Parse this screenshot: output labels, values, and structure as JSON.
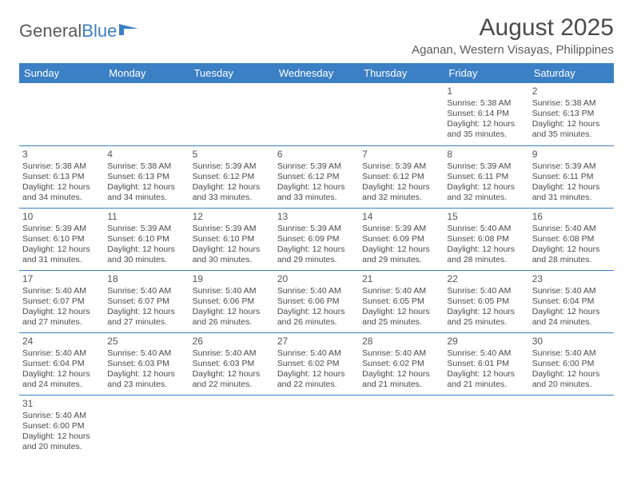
{
  "logo": {
    "text_gray": "General",
    "text_blue": "Blue"
  },
  "title": "August 2025",
  "location": "Aganan, Western Visayas, Philippines",
  "colors": {
    "header_bg": "#3b7fc4",
    "header_text": "#ffffff",
    "cell_border": "#3b7fc4",
    "body_text": "#4a4a4a"
  },
  "day_headers": [
    "Sunday",
    "Monday",
    "Tuesday",
    "Wednesday",
    "Thursday",
    "Friday",
    "Saturday"
  ],
  "weeks": [
    [
      null,
      null,
      null,
      null,
      null,
      {
        "n": "1",
        "sr": "5:38 AM",
        "ss": "6:14 PM",
        "dl": "12 hours and 35 minutes."
      },
      {
        "n": "2",
        "sr": "5:38 AM",
        "ss": "6:13 PM",
        "dl": "12 hours and 35 minutes."
      }
    ],
    [
      {
        "n": "3",
        "sr": "5:38 AM",
        "ss": "6:13 PM",
        "dl": "12 hours and 34 minutes."
      },
      {
        "n": "4",
        "sr": "5:38 AM",
        "ss": "6:13 PM",
        "dl": "12 hours and 34 minutes."
      },
      {
        "n": "5",
        "sr": "5:39 AM",
        "ss": "6:12 PM",
        "dl": "12 hours and 33 minutes."
      },
      {
        "n": "6",
        "sr": "5:39 AM",
        "ss": "6:12 PM",
        "dl": "12 hours and 33 minutes."
      },
      {
        "n": "7",
        "sr": "5:39 AM",
        "ss": "6:12 PM",
        "dl": "12 hours and 32 minutes."
      },
      {
        "n": "8",
        "sr": "5:39 AM",
        "ss": "6:11 PM",
        "dl": "12 hours and 32 minutes."
      },
      {
        "n": "9",
        "sr": "5:39 AM",
        "ss": "6:11 PM",
        "dl": "12 hours and 31 minutes."
      }
    ],
    [
      {
        "n": "10",
        "sr": "5:39 AM",
        "ss": "6:10 PM",
        "dl": "12 hours and 31 minutes."
      },
      {
        "n": "11",
        "sr": "5:39 AM",
        "ss": "6:10 PM",
        "dl": "12 hours and 30 minutes."
      },
      {
        "n": "12",
        "sr": "5:39 AM",
        "ss": "6:10 PM",
        "dl": "12 hours and 30 minutes."
      },
      {
        "n": "13",
        "sr": "5:39 AM",
        "ss": "6:09 PM",
        "dl": "12 hours and 29 minutes."
      },
      {
        "n": "14",
        "sr": "5:39 AM",
        "ss": "6:09 PM",
        "dl": "12 hours and 29 minutes."
      },
      {
        "n": "15",
        "sr": "5:40 AM",
        "ss": "6:08 PM",
        "dl": "12 hours and 28 minutes."
      },
      {
        "n": "16",
        "sr": "5:40 AM",
        "ss": "6:08 PM",
        "dl": "12 hours and 28 minutes."
      }
    ],
    [
      {
        "n": "17",
        "sr": "5:40 AM",
        "ss": "6:07 PM",
        "dl": "12 hours and 27 minutes."
      },
      {
        "n": "18",
        "sr": "5:40 AM",
        "ss": "6:07 PM",
        "dl": "12 hours and 27 minutes."
      },
      {
        "n": "19",
        "sr": "5:40 AM",
        "ss": "6:06 PM",
        "dl": "12 hours and 26 minutes."
      },
      {
        "n": "20",
        "sr": "5:40 AM",
        "ss": "6:06 PM",
        "dl": "12 hours and 26 minutes."
      },
      {
        "n": "21",
        "sr": "5:40 AM",
        "ss": "6:05 PM",
        "dl": "12 hours and 25 minutes."
      },
      {
        "n": "22",
        "sr": "5:40 AM",
        "ss": "6:05 PM",
        "dl": "12 hours and 25 minutes."
      },
      {
        "n": "23",
        "sr": "5:40 AM",
        "ss": "6:04 PM",
        "dl": "12 hours and 24 minutes."
      }
    ],
    [
      {
        "n": "24",
        "sr": "5:40 AM",
        "ss": "6:04 PM",
        "dl": "12 hours and 24 minutes."
      },
      {
        "n": "25",
        "sr": "5:40 AM",
        "ss": "6:03 PM",
        "dl": "12 hours and 23 minutes."
      },
      {
        "n": "26",
        "sr": "5:40 AM",
        "ss": "6:03 PM",
        "dl": "12 hours and 22 minutes."
      },
      {
        "n": "27",
        "sr": "5:40 AM",
        "ss": "6:02 PM",
        "dl": "12 hours and 22 minutes."
      },
      {
        "n": "28",
        "sr": "5:40 AM",
        "ss": "6:02 PM",
        "dl": "12 hours and 21 minutes."
      },
      {
        "n": "29",
        "sr": "5:40 AM",
        "ss": "6:01 PM",
        "dl": "12 hours and 21 minutes."
      },
      {
        "n": "30",
        "sr": "5:40 AM",
        "ss": "6:00 PM",
        "dl": "12 hours and 20 minutes."
      }
    ],
    [
      {
        "n": "31",
        "sr": "5:40 AM",
        "ss": "6:00 PM",
        "dl": "12 hours and 20 minutes."
      },
      null,
      null,
      null,
      null,
      null,
      null
    ]
  ],
  "labels": {
    "sunrise": "Sunrise:",
    "sunset": "Sunset:",
    "daylight": "Daylight:"
  }
}
